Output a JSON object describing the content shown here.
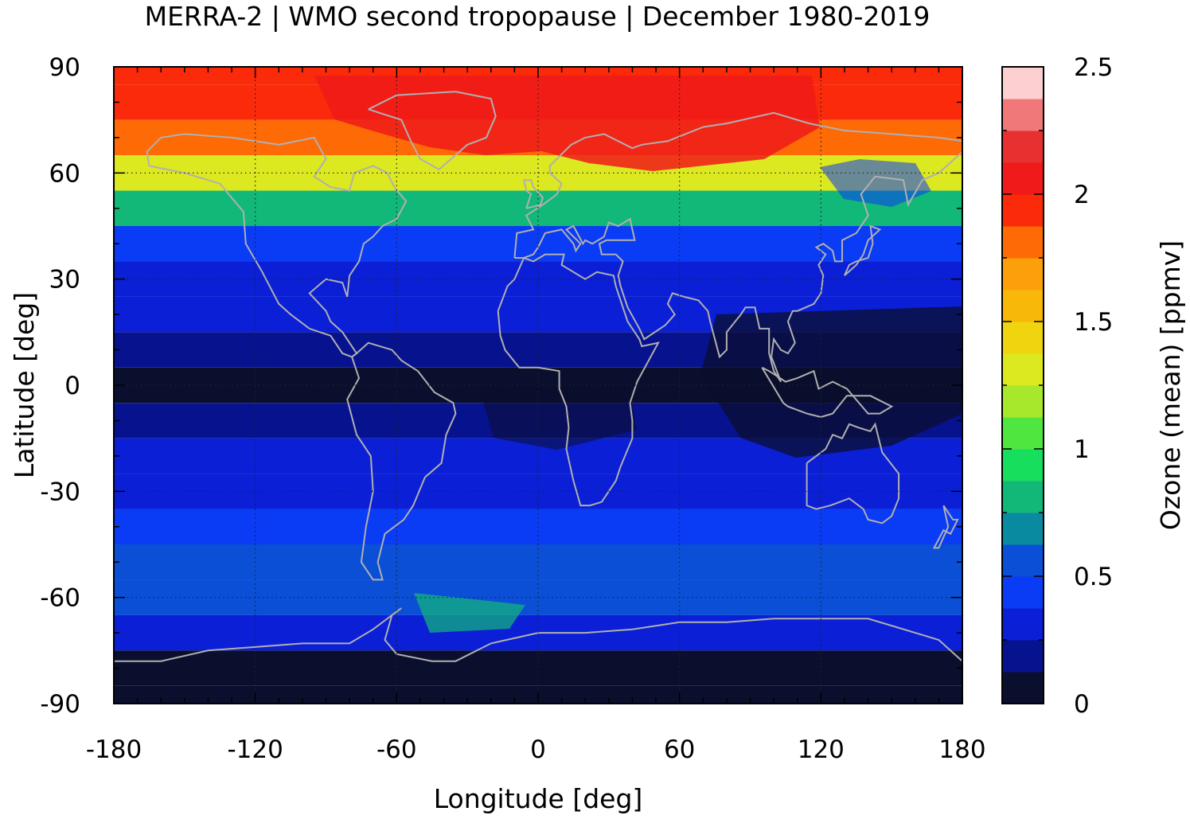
{
  "title": "MERRA-2 | WMO second tropopause | December 1980-2019",
  "chart_data": {
    "type": "heatmap",
    "xlabel": "Longitude [deg]",
    "ylabel": "Latitude [deg]",
    "xlim": [
      -180,
      180
    ],
    "ylim": [
      -90,
      90
    ],
    "xticks": [
      "-180",
      "-120",
      "-60",
      "0",
      "60",
      "120",
      "180"
    ],
    "yticks": [
      "90",
      "60",
      "30",
      "0",
      "-30",
      "-60",
      "-90"
    ],
    "grid": true,
    "coastlines": true,
    "colorbar": {
      "label": "Ozone (mean) [ppmv]",
      "min": 0,
      "max": 2.5,
      "ticks": [
        "0",
        "0.5",
        "1",
        "1.5",
        "2",
        "2.5"
      ],
      "colors": [
        "#0b0f2e",
        "#07128e",
        "#0a1fd6",
        "#0a3bf5",
        "#0a4fd6",
        "#0a8aa0",
        "#12b878",
        "#18de5e",
        "#50e640",
        "#a8e82c",
        "#dce820",
        "#f0d410",
        "#f7b80a",
        "#fba00a",
        "#fd6a06",
        "#fb2a0a",
        "#f01a1a",
        "#e83030",
        "#f07878",
        "#fcd0d0"
      ]
    },
    "zonal_profile": [
      {
        "lat": 90,
        "value": 1.92
      },
      {
        "lat": 80,
        "value": 1.95
      },
      {
        "lat": 70,
        "value": 1.75
      },
      {
        "lat": 60,
        "value": 1.25
      },
      {
        "lat": 50,
        "value": 0.75
      },
      {
        "lat": 40,
        "value": 0.45
      },
      {
        "lat": 30,
        "value": 0.32
      },
      {
        "lat": 20,
        "value": 0.28
      },
      {
        "lat": 10,
        "value": 0.18
      },
      {
        "lat": 0,
        "value": 0.12
      },
      {
        "lat": -10,
        "value": 0.16
      },
      {
        "lat": -20,
        "value": 0.28
      },
      {
        "lat": -30,
        "value": 0.34
      },
      {
        "lat": -40,
        "value": 0.42
      },
      {
        "lat": -50,
        "value": 0.55
      },
      {
        "lat": -60,
        "value": 0.58
      },
      {
        "lat": -70,
        "value": 0.32
      },
      {
        "lat": -80,
        "value": 0.12
      },
      {
        "lat": -90,
        "value": 0.08
      }
    ]
  }
}
